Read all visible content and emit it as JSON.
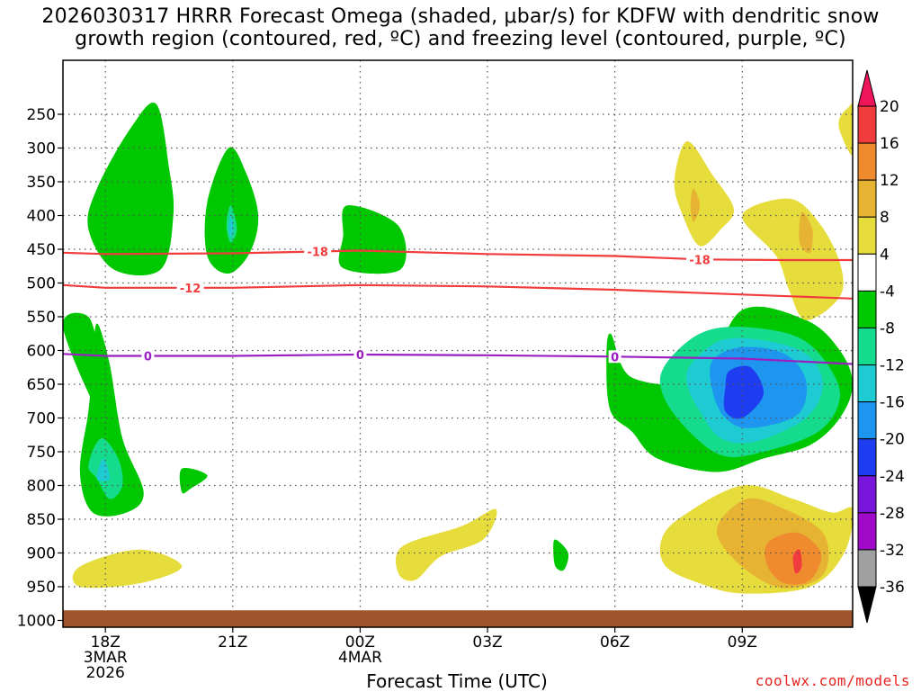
{
  "title": {
    "line1": "2026030317 HRRR Forecast Omega (shaded, μbar/s) for KDFW with dendritic snow",
    "line2": "growth region (contoured, red, ºC) and freezing level (contoured, purple, ºC)"
  },
  "credit": "coolwx.com/models",
  "chart_data": {
    "type": "time-height cross section",
    "xlabel": "Forecast Time (UTC)",
    "x_ticks": [
      {
        "hour": 0,
        "label": "18Z",
        "sub1": "3MAR",
        "sub2": "2026"
      },
      {
        "hour": 3,
        "label": "21Z",
        "sub1": "",
        "sub2": ""
      },
      {
        "hour": 6,
        "label": "00Z",
        "sub1": "4MAR",
        "sub2": ""
      },
      {
        "hour": 9,
        "label": "03Z",
        "sub1": "",
        "sub2": ""
      },
      {
        "hour": 12,
        "label": "06Z",
        "sub1": "",
        "sub2": ""
      },
      {
        "hour": 15,
        "label": "09Z",
        "sub1": "",
        "sub2": ""
      }
    ],
    "x_range_hours": [
      -1,
      17.6
    ],
    "y_ticks_hPa": [
      250,
      300,
      350,
      400,
      450,
      500,
      550,
      600,
      650,
      700,
      750,
      800,
      850,
      900,
      950,
      1000
    ],
    "y_range_hPa": [
      170,
      1010
    ],
    "colorbar": {
      "labels": [
        "20",
        "16",
        "12",
        "8",
        "4",
        "-4",
        "-8",
        "-12",
        "-16",
        "-20",
        "-24",
        "-28",
        "-32",
        "-36"
      ],
      "bins": [
        {
          "color": "#f0145a",
          "range": "> 20"
        },
        {
          "color": "#f03c3c",
          "range": "16 to 20"
        },
        {
          "color": "#ef8a2e",
          "range": "12 to 16"
        },
        {
          "color": "#e6b432",
          "range": "8 to 12"
        },
        {
          "color": "#e6dc3c",
          "range": "4 to 8"
        },
        {
          "color": "#ffffff",
          "range": "-4 to 4"
        },
        {
          "color": "#00c800",
          "range": "-8 to -4"
        },
        {
          "color": "#14dc8c",
          "range": "-12 to -8"
        },
        {
          "color": "#1ecbd2",
          "range": "-16 to -12"
        },
        {
          "color": "#1e96f0",
          "range": "-20 to -16"
        },
        {
          "color": "#1e3cf0",
          "range": "-24 to -20"
        },
        {
          "color": "#7814dc",
          "range": "-28 to -24"
        },
        {
          "color": "#a00ac8",
          "range": "-32 to -28"
        },
        {
          "color": "#a0a0a0",
          "range": "-36 to -32"
        },
        {
          "color": "#000000",
          "range": "< -36"
        }
      ]
    },
    "contours": [
      {
        "name": "dgz-top",
        "label": "-18",
        "color": "#f03c3c",
        "points": [
          [
            -1,
            455
          ],
          [
            0,
            457
          ],
          [
            3,
            456
          ],
          [
            6,
            452
          ],
          [
            9,
            457
          ],
          [
            12,
            460
          ],
          [
            14,
            465
          ],
          [
            16,
            466
          ],
          [
            17.6,
            466
          ]
        ],
        "label_hours": [
          5,
          14
        ]
      },
      {
        "name": "dgz-bottom",
        "label": "-12",
        "color": "#f03c3c",
        "points": [
          [
            -1,
            503
          ],
          [
            0,
            507
          ],
          [
            3,
            507
          ],
          [
            6,
            503
          ],
          [
            9,
            505
          ],
          [
            12,
            510
          ],
          [
            15,
            517
          ],
          [
            17.6,
            523
          ]
        ],
        "label_hours": [
          2
        ]
      },
      {
        "name": "freezing-level",
        "label": "0",
        "color": "#9a1fc0",
        "points": [
          [
            -1,
            605
          ],
          [
            0,
            608
          ],
          [
            3,
            608
          ],
          [
            6,
            606
          ],
          [
            9,
            607
          ],
          [
            12,
            609
          ],
          [
            15,
            612
          ],
          [
            17.6,
            620
          ]
        ],
        "label_hours": [
          1,
          6,
          12
        ]
      }
    ],
    "shaded_regions": [
      {
        "value": "-4 to -8",
        "color": "#00c800",
        "points": [
          [
            0.6,
            270
          ],
          [
            1.2,
            235
          ],
          [
            1.5,
            330
          ],
          [
            1.6,
            400
          ],
          [
            1.3,
            480
          ],
          [
            0.2,
            480
          ],
          [
            -0.4,
            420
          ],
          [
            -0.2,
            360
          ]
        ]
      },
      {
        "value": "-4 to -8",
        "color": "#00c800",
        "points": [
          [
            2.9,
            300
          ],
          [
            3.3,
            335
          ],
          [
            3.6,
            400
          ],
          [
            3.4,
            455
          ],
          [
            2.9,
            486
          ],
          [
            2.4,
            460
          ],
          [
            2.4,
            380
          ]
        ]
      },
      {
        "value": "-8 to -12",
        "color": "#14dc8c",
        "points": [
          [
            2.95,
            385
          ],
          [
            3.1,
            420
          ],
          [
            2.95,
            440
          ],
          [
            2.85,
            415
          ]
        ]
      },
      {
        "value": "-12 to -16",
        "color": "#1ecbd2",
        "points": [
          [
            2.95,
            400
          ],
          [
            3.02,
            420
          ],
          [
            2.95,
            433
          ],
          [
            2.9,
            418
          ]
        ]
      },
      {
        "value": "-4 to -8",
        "color": "#00c800",
        "points": [
          [
            5.7,
            385
          ],
          [
            6.9,
            415
          ],
          [
            6.95,
            480
          ],
          [
            5.6,
            478
          ],
          [
            5.6,
            430
          ]
        ]
      },
      {
        "value": "-4 to -8",
        "color": "#00c800",
        "points": [
          [
            -1.0,
            565
          ],
          [
            -0.4,
            550
          ],
          [
            -0.1,
            620
          ],
          [
            0,
            660
          ],
          [
            -0.1,
            700
          ]
        ]
      },
      {
        "value": "-4 to -8",
        "color": "#00c800",
        "points": [
          [
            -0.2,
            560
          ],
          [
            0.1,
            620
          ],
          [
            0.4,
            730
          ],
          [
            0.9,
            810
          ],
          [
            0.5,
            840
          ],
          [
            -0.3,
            840
          ],
          [
            -0.6,
            780
          ],
          [
            -0.4,
            690
          ],
          [
            -0.3,
            620
          ]
        ]
      },
      {
        "value": "-8 to -12",
        "color": "#14dc8c",
        "points": [
          [
            -0.1,
            730
          ],
          [
            0.3,
            760
          ],
          [
            0.4,
            800
          ],
          [
            0.1,
            820
          ],
          [
            -0.2,
            790
          ],
          [
            -0.4,
            770
          ]
        ]
      },
      {
        "value": "-12 to -16",
        "color": "#1ecbd2",
        "points": [
          [
            -0.05,
            760
          ],
          [
            0.1,
            790
          ],
          -0.05,
          810,
          [
            -0.2,
            790
          ]
        ]
      },
      {
        "value": "-4 to -8",
        "color": "#00c800",
        "points": [
          [
            1.8,
            775
          ],
          [
            2.4,
            785
          ],
          [
            2.0,
            805
          ],
          [
            1.8,
            810
          ]
        ]
      },
      {
        "value": "-4 to -8",
        "color": "#00c800",
        "points": [
          [
            10.6,
            880
          ],
          [
            10.9,
            900
          ],
          [
            10.8,
            925
          ],
          [
            10.6,
            920
          ],
          [
            10.55,
            895
          ]
        ]
      },
      {
        "value": "-4 to -8",
        "color": "#00c800",
        "points": [
          [
            11.9,
            575
          ],
          [
            12.4,
            640
          ],
          [
            14.0,
            640
          ],
          [
            15.0,
            540
          ],
          [
            16.5,
            555
          ],
          [
            17.3,
            600
          ],
          [
            17.6,
            650
          ],
          [
            17.3,
            700
          ],
          [
            16.6,
            740
          ],
          [
            15.5,
            760
          ],
          [
            14.4,
            780
          ],
          [
            13.0,
            760
          ],
          [
            12.4,
            720
          ],
          [
            11.9,
            690
          ],
          [
            11.8,
            620
          ]
        ]
      },
      {
        "value": "-8 to -12",
        "color": "#14dc8c",
        "points": [
          [
            13.2,
            620
          ],
          [
            14.0,
            575
          ],
          [
            15.0,
            565
          ],
          [
            16.3,
            580
          ],
          [
            17.0,
            620
          ],
          [
            17.3,
            670
          ],
          [
            16.8,
            720
          ],
          [
            15.5,
            750
          ],
          [
            14.5,
            755
          ],
          [
            13.6,
            710
          ],
          [
            13.1,
            660
          ]
        ]
      },
      {
        "value": "-12 to -16",
        "color": "#1ecbd2",
        "points": [
          [
            13.8,
            620
          ],
          [
            14.5,
            585
          ],
          [
            15.5,
            585
          ],
          [
            16.5,
            605
          ],
          [
            16.9,
            650
          ],
          [
            16.5,
            700
          ],
          [
            15.3,
            735
          ],
          [
            14.5,
            730
          ],
          [
            14.0,
            690
          ],
          [
            13.7,
            650
          ]
        ]
      },
      {
        "value": "-16 to -20",
        "color": "#1e96f0",
        "points": [
          [
            14.3,
            615
          ],
          [
            15.0,
            595
          ],
          [
            16.0,
            605
          ],
          [
            16.5,
            645
          ],
          [
            16.3,
            695
          ],
          [
            15.2,
            715
          ],
          [
            14.6,
            700
          ],
          [
            14.3,
            660
          ]
        ]
      },
      {
        "value": "-20 to -24",
        "color": "#1e3cf0",
        "points": [
          [
            14.7,
            630
          ],
          [
            15.2,
            625
          ],
          [
            15.5,
            665
          ],
          [
            15.0,
            700
          ],
          [
            14.6,
            690
          ],
          [
            14.6,
            655
          ]
        ]
      },
      {
        "value": "4 to 8",
        "color": "#e6dc3c",
        "points": [
          [
            13.7,
            290
          ],
          [
            14.3,
            340
          ],
          [
            14.8,
            390
          ],
          [
            14.5,
            420
          ],
          [
            14.0,
            445
          ],
          [
            13.6,
            400
          ],
          [
            13.4,
            350
          ]
        ]
      },
      {
        "value": "8 to 12",
        "color": "#e6b432",
        "points": [
          [
            13.85,
            360
          ],
          [
            14.0,
            385
          ],
          [
            13.85,
            410
          ],
          [
            13.78,
            385
          ]
        ]
      },
      {
        "value": "4 to 8",
        "color": "#e6dc3c",
        "points": [
          [
            16.1,
            375
          ],
          [
            16.8,
            410
          ],
          [
            17.3,
            470
          ],
          [
            17.3,
            520
          ],
          [
            16.5,
            555
          ],
          [
            16.1,
            510
          ],
          [
            15.8,
            460
          ],
          [
            15.0,
            400
          ]
        ]
      },
      {
        "value": "8 to 12",
        "color": "#e6b432",
        "points": [
          [
            16.4,
            395
          ],
          [
            16.65,
            420
          ],
          [
            16.6,
            455
          ],
          [
            16.35,
            440
          ]
        ]
      },
      {
        "value": "4 to 8",
        "color": "#e6dc3c",
        "points": [
          [
            17.5,
            240
          ],
          [
            17.6,
            240
          ],
          [
            17.6,
            310
          ],
          [
            17.3,
            275
          ],
          [
            17.3,
            255
          ]
        ]
      },
      {
        "value": "4 to 8",
        "color": "#e6dc3c",
        "points": [
          [
            -0.6,
            920
          ],
          [
            0.8,
            895
          ],
          [
            1.8,
            920
          ],
          [
            0.8,
            945
          ],
          [
            -0.6,
            950
          ]
        ]
      },
      {
        "value": "4 to 8",
        "color": "#e6dc3c",
        "points": [
          [
            7.0,
            890
          ],
          [
            8.4,
            860
          ],
          [
            9.2,
            835
          ],
          [
            8.9,
            880
          ],
          [
            7.9,
            905
          ],
          [
            7.3,
            940
          ],
          [
            6.9,
            930
          ]
        ]
      },
      {
        "value": "4 to 8",
        "color": "#e6dc3c",
        "points": [
          [
            13.1,
            880
          ],
          [
            13.6,
            845
          ],
          [
            15.0,
            800
          ],
          [
            16.2,
            820
          ],
          [
            17.1,
            840
          ],
          [
            17.6,
            835
          ],
          [
            17.4,
            900
          ],
          [
            16.6,
            950
          ],
          [
            15.0,
            960
          ],
          [
            14.0,
            945
          ],
          [
            13.2,
            920
          ]
        ]
      },
      {
        "value": "8 to 12",
        "color": "#e6b432",
        "points": [
          [
            14.4,
            865
          ],
          [
            15.1,
            820
          ],
          [
            16.0,
            835
          ],
          [
            16.9,
            870
          ],
          [
            17.0,
            920
          ],
          [
            16.6,
            945
          ],
          [
            15.8,
            950
          ],
          [
            14.9,
            915
          ]
        ]
      },
      {
        "value": "12 to 16",
        "color": "#ef8a2e",
        "points": [
          [
            15.6,
            885
          ],
          [
            16.3,
            870
          ],
          [
            16.85,
            900
          ],
          [
            16.6,
            940
          ],
          [
            16.0,
            945
          ],
          [
            15.6,
            920
          ]
        ]
      },
      {
        "value": "16 to 20",
        "color": "#f03c3c",
        "points": [
          [
            16.2,
            905
          ],
          [
            16.35,
            895
          ],
          [
            16.4,
            920
          ],
          [
            16.25,
            930
          ]
        ]
      }
    ],
    "terrain": {
      "color": "#a0522d",
      "top_hPa": 985
    }
  }
}
